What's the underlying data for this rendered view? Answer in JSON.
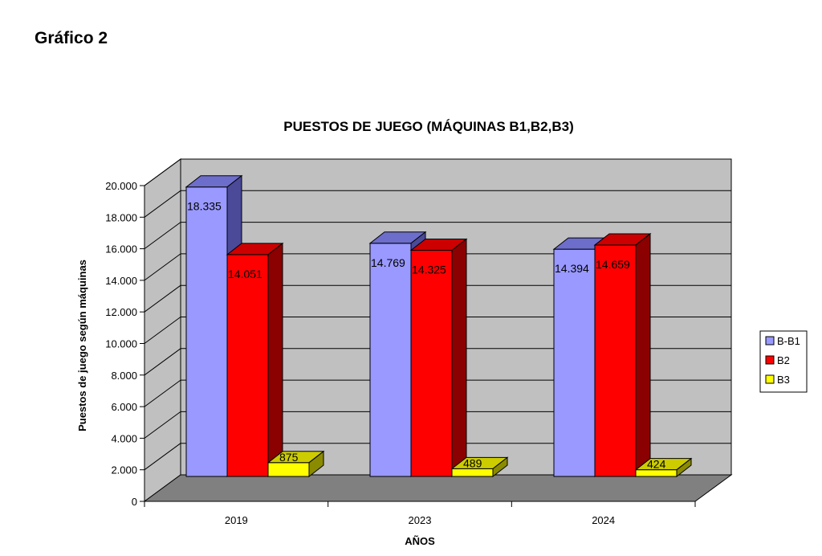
{
  "page": {
    "heading": "Gráfico 2"
  },
  "chart_data": {
    "type": "bar",
    "title": "PUESTOS DE JUEGO (MÁQUINAS B1,B2,B3)",
    "xlabel": "AÑOS",
    "ylabel": "Puestos de juego según máquinas",
    "categories": [
      "2019",
      "2023",
      "2024"
    ],
    "series": [
      {
        "name": "B-B1",
        "values": [
          18335,
          14769,
          14394
        ],
        "labels": [
          "18.335",
          "14.769",
          "14.394"
        ],
        "color": "#9999FF",
        "top_color": "#6D6DCC",
        "side_color": "#4A4A99"
      },
      {
        "name": "B2",
        "values": [
          14051,
          14325,
          14659
        ],
        "labels": [
          "14.051",
          "14.325",
          "14.659"
        ],
        "color": "#FF0000",
        "top_color": "#CC0000",
        "side_color": "#8B0000"
      },
      {
        "name": "B3",
        "values": [
          875,
          489,
          424
        ],
        "labels": [
          "875",
          "489",
          "424"
        ],
        "color": "#FFFF00",
        "top_color": "#CCCC00",
        "side_color": "#8B8B00"
      }
    ],
    "ylim": [
      0,
      20000
    ],
    "yticks": [
      0,
      2000,
      4000,
      6000,
      8000,
      10000,
      12000,
      14000,
      16000,
      18000,
      20000
    ],
    "ytick_labels": [
      "0",
      "2.000",
      "4.000",
      "6.000",
      "8.000",
      "10.000",
      "12.000",
      "14.000",
      "16.000",
      "18.000",
      "20.000"
    ],
    "grid": true,
    "legend_position": "right",
    "wall_color": "#C0C0C0",
    "floor_color": "#808080"
  }
}
